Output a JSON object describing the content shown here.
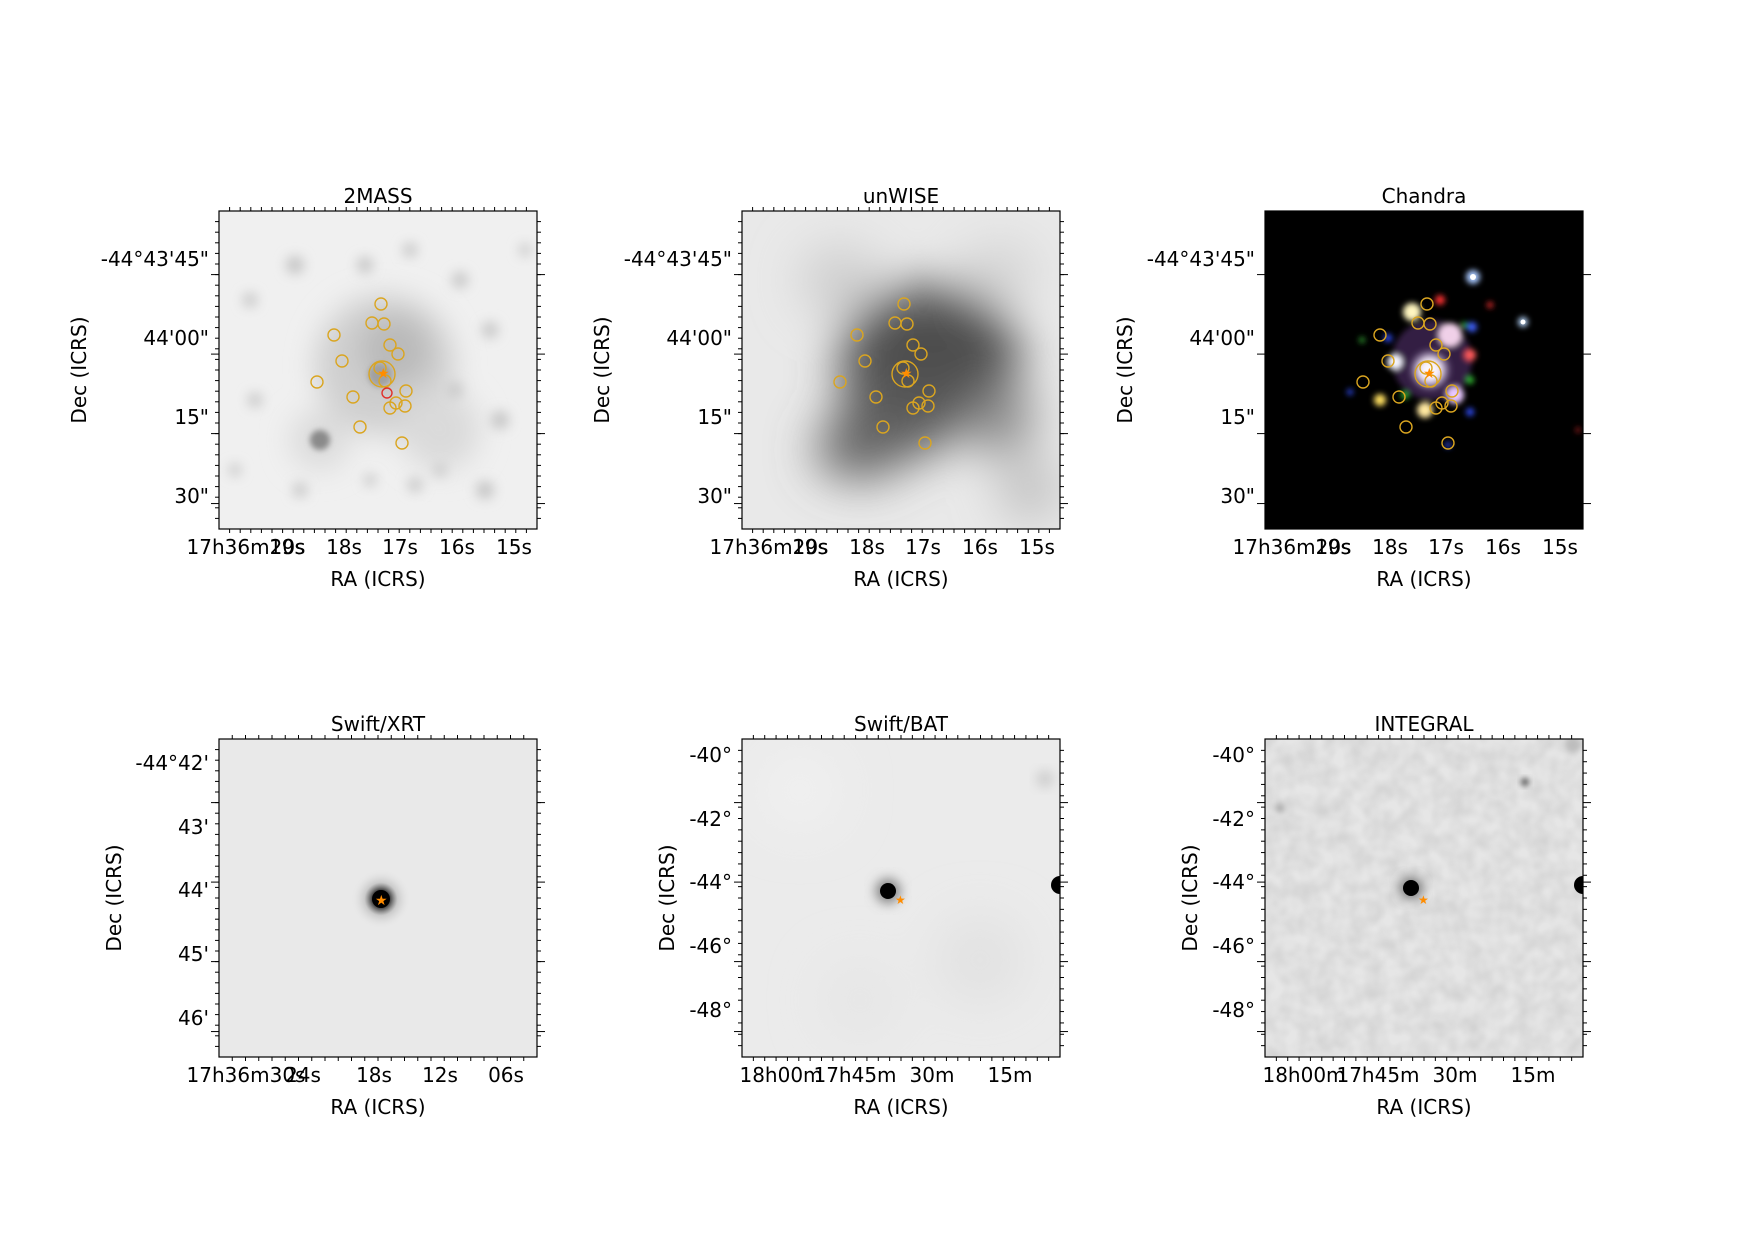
{
  "panels": [
    {
      "title": "2MASS",
      "xlabel": "RA (ICRS)",
      "ylabel": "Dec (ICRS)",
      "xticks": [
        "17h36m20s",
        "19s",
        "18s",
        "17s",
        "16s",
        "15s"
      ],
      "yticks": [
        "-44°43'45\"",
        "44'00\"",
        "15\"",
        "30\""
      ],
      "style": "light-gray-optical-field"
    },
    {
      "title": "unWISE",
      "xlabel": "RA (ICRS)",
      "ylabel": "Dec (ICRS)",
      "xticks": [
        "17h36m20s",
        "19s",
        "18s",
        "17s",
        "16s",
        "15s"
      ],
      "yticks": [
        "-44°43'45\"",
        "44'00\"",
        "15\"",
        "30\""
      ],
      "style": "gray-infrared-blob"
    },
    {
      "title": "Chandra",
      "xlabel": "RA (ICRS)",
      "ylabel": "Dec (ICRS)",
      "xticks": [
        "17h36m20s",
        "19s",
        "18s",
        "17s",
        "16s",
        "15s"
      ],
      "yticks": [
        "-44°43'45\"",
        "44'00\"",
        "15\"",
        "30\""
      ],
      "style": "rgb-xray-on-black"
    },
    {
      "title": "Swift/XRT",
      "xlabel": "RA (ICRS)",
      "ylabel": "Dec (ICRS)",
      "xticks": [
        "17h36m30s",
        "24s",
        "18s",
        "12s",
        "06s"
      ],
      "yticks": [
        "-44°42'",
        "43'",
        "44'",
        "45'",
        "46'"
      ],
      "style": "point-source-light"
    },
    {
      "title": "Swift/BAT",
      "xlabel": "RA (ICRS)",
      "ylabel": "Dec (ICRS)",
      "xticks": [
        "18h00m",
        "17h45m",
        "30m",
        "15m"
      ],
      "yticks": [
        "-40°",
        "-42°",
        "-44°",
        "-46°",
        "-48°"
      ],
      "style": "wide-field-smooth"
    },
    {
      "title": "INTEGRAL",
      "xlabel": "RA (ICRS)",
      "ylabel": "Dec (ICRS)",
      "xticks": [
        "18h00m",
        "17h45m",
        "30m",
        "15m"
      ],
      "yticks": [
        "-40°",
        "-42°",
        "-44°",
        "-46°",
        "-48°"
      ],
      "style": "wide-field-mottled"
    }
  ],
  "colors": {
    "marker": "#daa520",
    "star": "#ff8c00",
    "background_light": "#ececec",
    "background_dark": "#000000"
  }
}
